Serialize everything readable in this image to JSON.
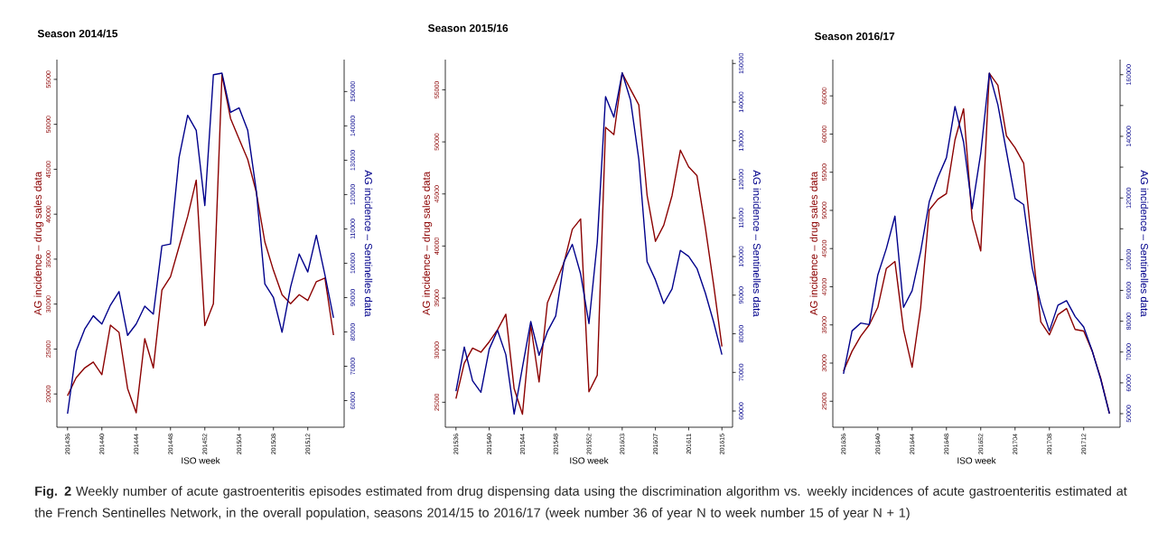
{
  "chart_data": [
    {
      "type": "line",
      "title": "Season 2014/15",
      "xlabel": "ISO week",
      "ylabel": "AG incidence – drug sales data",
      "y2label": "AG incidence – Sentinelles data",
      "categories": [
        "201436",
        null,
        null,
        null,
        "201440",
        null,
        null,
        null,
        "201444",
        null,
        null,
        null,
        "201448",
        null,
        null,
        null,
        "201452",
        null,
        null,
        null,
        "201504",
        null,
        null,
        null,
        "201508",
        null,
        null,
        null,
        "201512",
        null,
        null,
        null
      ],
      "series": [
        {
          "color": "#8b0000",
          "values": [
            19800,
            21800,
            22900,
            23550,
            22150,
            27650,
            26850,
            20600,
            17900,
            26150,
            22900,
            31550,
            33050,
            36400,
            39750,
            43800,
            27600,
            30050,
            55500,
            50650,
            48350,
            46100,
            42450,
            36900,
            33750,
            31050,
            30050,
            31050,
            30400,
            32500,
            32900,
            26550
          ]
        },
        {
          "color": "#00008b",
          "axis": "y2",
          "values": [
            56200,
            74400,
            80800,
            84700,
            82300,
            87800,
            91750,
            79000,
            82300,
            87500,
            85200,
            105100,
            105600,
            130800,
            143100,
            138700,
            116800,
            154900,
            155350,
            143950,
            145250,
            138700,
            121150,
            93950,
            90000,
            79900,
            93100,
            102700,
            97450,
            108150,
            96600,
            84100
          ]
        }
      ],
      "ylim": [
        16300,
        57200
      ],
      "yticks": [
        20000,
        25000,
        30000,
        35000,
        40000,
        45000,
        50000,
        55000
      ],
      "y2lim": [
        52250,
        159300
      ],
      "y2ticks": [
        60000,
        70000,
        80000,
        90000,
        100000,
        110000,
        120000,
        130000,
        140000,
        150000
      ],
      "annotations": [
        "**Fig. 2** Weekly number of acute gastroenteritis episodes estimated from drug dispensing data using the discrimination algorithm vs. weekly incidences of acute gastroenteritis estimated at the French Sentinelles Network, in the overall population, seasons 2014/15 to 2016/17 (week number 36 of year N to week number 15 of year N + 1)"
      ]
    },
    {
      "type": "line",
      "title": "Season 2015/16",
      "xlabel": "ISO week",
      "ylabel": "AG incidence – drug sales data",
      "y2label": "AG incidence – Sentinelles data",
      "categories": [
        "201536",
        null,
        null,
        null,
        "201540",
        null,
        null,
        null,
        "201544",
        null,
        null,
        null,
        "201548",
        null,
        null,
        null,
        "201552",
        null,
        null,
        null,
        "201603",
        null,
        null,
        null,
        "201607",
        null,
        null,
        null,
        "201611",
        null,
        null,
        null,
        "201615"
      ],
      "series": [
        {
          "color": "#8b0000",
          "values": [
            25350,
            28750,
            30200,
            29800,
            30800,
            31950,
            33450,
            26300,
            23850,
            32400,
            26950,
            34550,
            36450,
            38400,
            41600,
            42600,
            26000,
            27600,
            51400,
            50700,
            56600,
            55050,
            53550,
            44850,
            40450,
            42000,
            44850,
            49200,
            47600,
            46750,
            41800,
            36300,
            30350
          ]
        },
        {
          "color": "#00008b",
          "axis": "y2",
          "values": [
            65100,
            76550,
            67800,
            64850,
            76000,
            80900,
            74600,
            59200,
            71300,
            83200,
            74450,
            80550,
            84600,
            98650,
            103150,
            95500,
            82650,
            103700,
            141400,
            136100,
            147600,
            140550,
            125200,
            98650,
            93950,
            87850,
            91600,
            101600,
            100050,
            96900,
            90600,
            83050,
            74600
          ]
        }
      ],
      "ylim": [
        22600,
        57900
      ],
      "yticks": [
        25000,
        30000,
        35000,
        40000,
        45000,
        50000,
        55000
      ],
      "y2lim": [
        55800,
        151000
      ],
      "y2ticks": [
        60000,
        70000,
        80000,
        90000,
        100000,
        110000,
        120000,
        130000,
        140000,
        150000
      ]
    },
    {
      "type": "line",
      "title": "Season 2016/17",
      "xlabel": "ISO week",
      "ylabel": "AG incidence – drug sales data",
      "y2label": "AG incidence – Sentinelles data",
      "categories": [
        "201636",
        null,
        null,
        null,
        "201640",
        null,
        null,
        null,
        "201644",
        null,
        null,
        null,
        "201648",
        null,
        null,
        null,
        "201652",
        null,
        null,
        null,
        "201704",
        null,
        null,
        null,
        "201708",
        null,
        null,
        null,
        "201712",
        null,
        null,
        null
      ],
      "series": [
        {
          "color": "#8b0000",
          "values": [
            28950,
            31550,
            33500,
            35000,
            37300,
            42400,
            43300,
            34400,
            29450,
            37300,
            50050,
            51450,
            52200,
            59250,
            63300,
            48850,
            44700,
            67950,
            66400,
            59750,
            58200,
            56200,
            45200,
            35400,
            33700,
            36350,
            37150,
            34400,
            34200,
            31550,
            27950,
            23400
          ]
        },
        {
          "color": "#00008b",
          "axis": "y2",
          "values": [
            62950,
            76850,
            79400,
            78900,
            95000,
            103600,
            114100,
            84500,
            89900,
            102650,
            118800,
            126650,
            133050,
            149700,
            138150,
            116550,
            134500,
            160500,
            150200,
            135000,
            119800,
            117850,
            97250,
            85500,
            76850,
            85200,
            86650,
            81550,
            78150,
            70300,
            61000,
            50000
          ]
        }
      ],
      "ylim": [
        21600,
        69750
      ],
      "yticks": [
        25000,
        30000,
        35000,
        40000,
        45000,
        50000,
        55000,
        60000,
        65000
      ],
      "y2lim": [
        45600,
        164900
      ],
      "y2ticks": [
        50000,
        60000,
        70000,
        80000,
        90000,
        100000,
        {
          "value": 110000,
          "label": null
        },
        120000,
        {
          "value": 130000,
          "label": null
        },
        140000,
        {
          "value": 150000,
          "label": null
        },
        160000
      ]
    }
  ]
}
